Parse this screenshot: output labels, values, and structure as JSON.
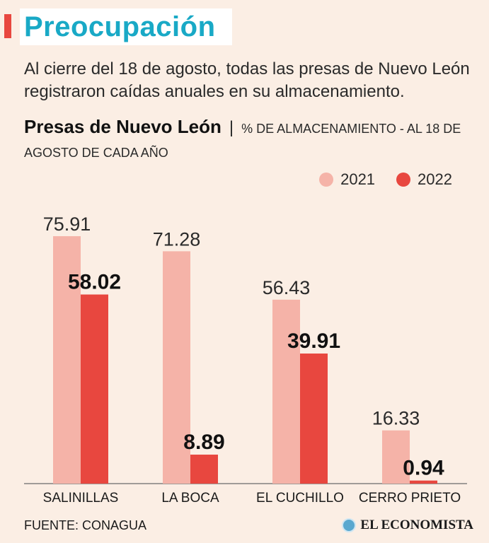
{
  "header": {
    "title": "Preocupación",
    "intro": "Al cierre del 18 de agosto, todas las presas de Nuevo León registraron caídas anuales en su almacenamiento.",
    "subtitle_main": "Presas de Nuevo León",
    "subtitle_sep": "|",
    "subtitle_rest": "% DE ALMACENAMIENTO - AL 18 DE AGOSTO DE CADA AÑO"
  },
  "footer": {
    "source": "FUENTE: CONAGUA",
    "brand": "EL ECONOMISTA"
  },
  "colors": {
    "series_2021": "#f5b3a8",
    "series_2022": "#e8473f",
    "title": "#19a9c6",
    "accent": "#e8473f"
  },
  "chart_data": {
    "type": "bar",
    "title": "Presas de Nuevo León",
    "subtitle": "% DE ALMACENAMIENTO - AL 18 DE AGOSTO DE CADA AÑO",
    "categories": [
      "SALINILLAS",
      "LA BOCA",
      "EL CUCHILLO",
      "CERRO PRIETO"
    ],
    "series": [
      {
        "name": "2021",
        "values": [
          75.91,
          71.28,
          56.43,
          16.33
        ],
        "labels": [
          "75.91",
          "71.28",
          "56.43",
          "16.33"
        ]
      },
      {
        "name": "2022",
        "values": [
          58.02,
          8.89,
          39.91,
          0.94
        ],
        "labels": [
          "58.02",
          "8.89",
          "39.91",
          "0.94"
        ]
      }
    ],
    "ylim": [
      0,
      100
    ],
    "grid": false,
    "legend": "top-right",
    "xlabel": "",
    "ylabel": ""
  }
}
